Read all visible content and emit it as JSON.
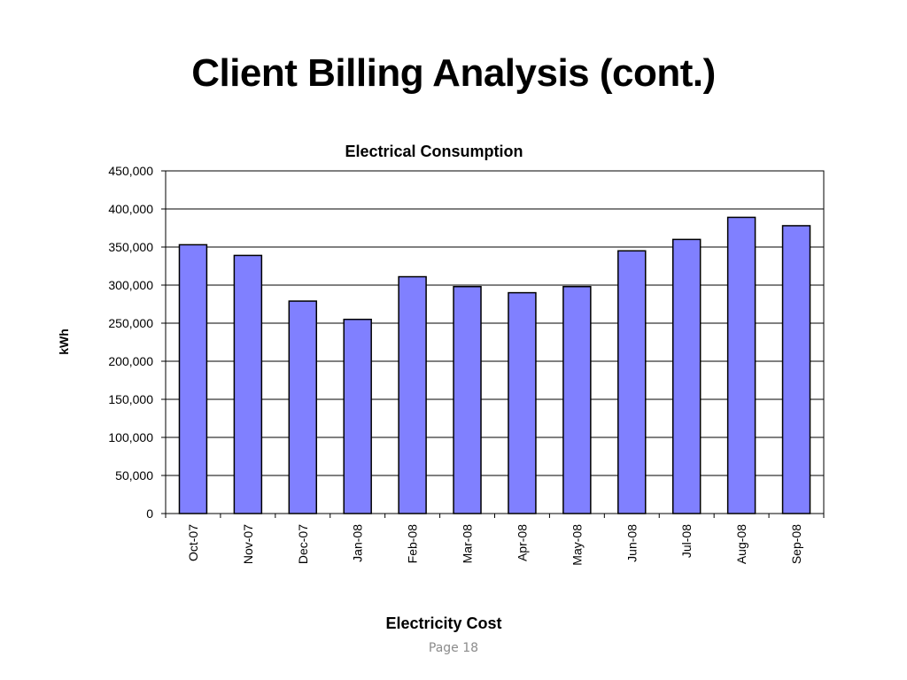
{
  "slide": {
    "title": "Client Billing Analysis (cont.)",
    "page_label": "Page 18"
  },
  "chart_data": {
    "type": "bar",
    "title": "Electrical Consumption",
    "xlabel": "Electricity Cost",
    "ylabel": "kWh",
    "categories": [
      "Oct-07",
      "Nov-07",
      "Dec-07",
      "Jan-08",
      "Feb-08",
      "Mar-08",
      "Apr-08",
      "May-08",
      "Jun-08",
      "Jul-08",
      "Aug-08",
      "Sep-08"
    ],
    "series": [
      {
        "values": [
          353000,
          339000,
          279000,
          255000,
          311000,
          298000,
          290000,
          298000,
          345000,
          360000,
          389000,
          378000
        ]
      }
    ],
    "ylim": [
      0,
      450000
    ],
    "yticks": [
      0,
      50000,
      100000,
      150000,
      200000,
      250000,
      300000,
      350000,
      400000,
      450000
    ],
    "ytick_labels": [
      "0",
      "50,000",
      "100,000",
      "150,000",
      "200,000",
      "250,000",
      "300,000",
      "350,000",
      "400,000",
      "450,000"
    ],
    "grid": true,
    "legend": "none",
    "colors": {
      "bar_fill": "#8080FF",
      "bar_stroke": "#000000",
      "grid": "#000000"
    }
  }
}
